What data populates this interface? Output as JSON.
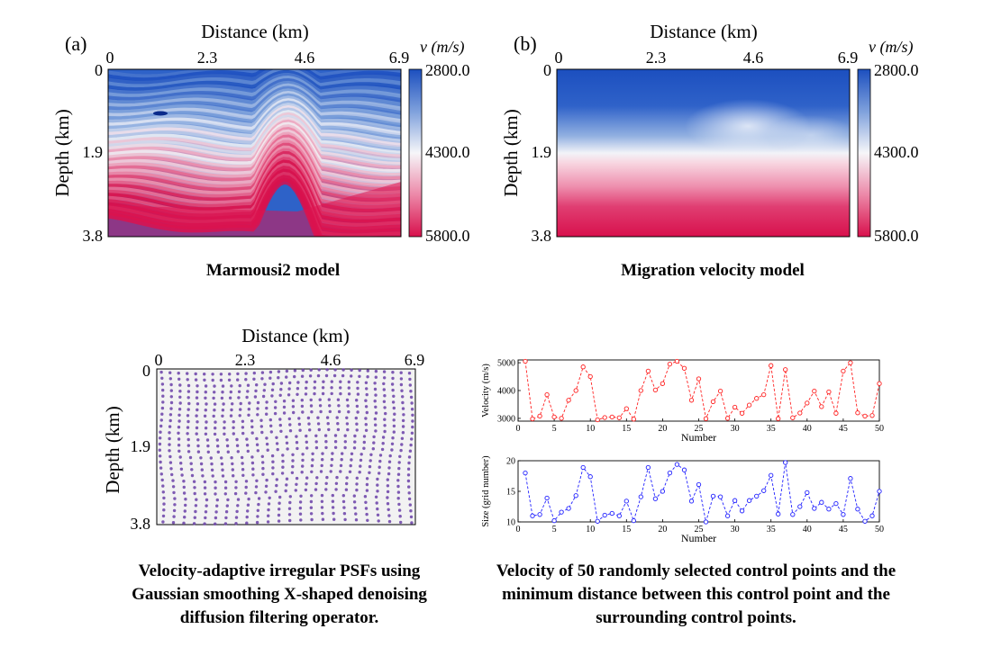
{
  "panels": {
    "a": {
      "tag": "(a)",
      "xlabel": "Distance (km)",
      "ylabel": "Depth (km)",
      "xticks": [
        "0",
        "2.3",
        "4.6",
        "6.9"
      ],
      "yticks": [
        "0",
        "1.9",
        "3.8"
      ],
      "colorbar_title": "v (m/s)",
      "colorbar_ticks": [
        "2800.0",
        "4300.0",
        "5800.0"
      ],
      "caption": "Marmousi2 model"
    },
    "b": {
      "tag": "(b)",
      "xlabel": "Distance (km)",
      "ylabel": "Depth (km)",
      "xticks": [
        "0",
        "2.3",
        "4.6",
        "6.9"
      ],
      "yticks": [
        "0",
        "1.9",
        "3.8"
      ],
      "colorbar_title": "v (m/s)",
      "colorbar_ticks": [
        "2800.0",
        "4300.0",
        "5800.0"
      ],
      "caption": "Migration velocity model"
    },
    "c": {
      "xlabel": "Distance (km)",
      "ylabel": "Depth (km)",
      "xticks": [
        "0",
        "2.3",
        "4.6",
        "6.9"
      ],
      "yticks": [
        "0",
        "1.9",
        "3.8"
      ],
      "caption_lines": [
        "Velocity-adaptive irregular PSFs using",
        "Gaussian smoothing X-shaped denoising",
        "diffusion filtering operator."
      ]
    },
    "d": {
      "caption_lines": [
        "Velocity of 50 randomly selected control points and the",
        "minimum distance between this control point and the",
        "surrounding control points."
      ]
    }
  },
  "colors": {
    "low_velocity": "#2050c0",
    "mid_velocity": "#f4f4f8",
    "high_velocity": "#dc1450",
    "velocity_series": "#ff2020",
    "size_series": "#2020ff",
    "psf_dot": "#6a3fa8"
  },
  "chart_data": [
    {
      "type": "heatmap",
      "title": "Marmousi2 model",
      "xlabel": "Distance (km)",
      "ylabel": "Depth (km)",
      "xlim": [
        0,
        6.9
      ],
      "ylim": [
        0,
        3.8
      ],
      "colorbar_label": "v (m/s)",
      "colorbar_range": [
        2800,
        5800
      ],
      "colormap": "blue-white-red"
    },
    {
      "type": "heatmap",
      "title": "Migration velocity model",
      "xlabel": "Distance (km)",
      "ylabel": "Depth (km)",
      "xlim": [
        0,
        6.9
      ],
      "ylim": [
        0,
        3.8
      ],
      "colorbar_label": "v (m/s)",
      "colorbar_range": [
        2800,
        5800
      ],
      "colormap": "blue-white-red"
    },
    {
      "type": "scatter",
      "title": "Velocity-adaptive irregular PSFs using Gaussian smoothing X-shaped denoising diffusion filtering operator.",
      "xlabel": "Distance (km)",
      "ylabel": "Depth (km)",
      "xlim": [
        0,
        6.9
      ],
      "ylim": [
        0,
        3.8
      ]
    },
    {
      "type": "line",
      "xlabel": "Number",
      "ylabel": "Velocity (m/s)",
      "xlim": [
        0,
        50
      ],
      "ylim": [
        2900,
        5100
      ],
      "xticks": [
        0,
        5,
        10,
        15,
        20,
        25,
        30,
        35,
        40,
        45,
        50
      ],
      "yticks": [
        3000,
        4000,
        5000
      ],
      "x": [
        1,
        2,
        3,
        4,
        5,
        6,
        7,
        8,
        9,
        10,
        11,
        12,
        13,
        14,
        15,
        16,
        17,
        18,
        19,
        20,
        21,
        22,
        23,
        24,
        25,
        26,
        27,
        28,
        29,
        30,
        31,
        32,
        33,
        34,
        35,
        36,
        37,
        38,
        39,
        40,
        41,
        42,
        43,
        44,
        45,
        46,
        47,
        48,
        49,
        50
      ],
      "values": [
        5050,
        2980,
        3080,
        3850,
        3050,
        3000,
        3650,
        4000,
        4850,
        4500,
        2950,
        3030,
        3050,
        3020,
        3350,
        2970,
        4000,
        4700,
        4020,
        4250,
        4950,
        5050,
        4800,
        3650,
        4420,
        2990,
        3600,
        3980,
        3000,
        3400,
        3180,
        3480,
        3720,
        3850,
        4900,
        2990,
        4750,
        3020,
        3190,
        3550,
        3980,
        3420,
        3950,
        3180,
        4700,
        5000,
        3200,
        3080,
        3100,
        4250
      ],
      "style": "dashed-circles"
    },
    {
      "type": "line",
      "xlabel": "Number",
      "ylabel": "Size (grid number)",
      "xlim": [
        0,
        50
      ],
      "ylim": [
        10,
        20
      ],
      "xticks": [
        0,
        5,
        10,
        15,
        20,
        25,
        30,
        35,
        40,
        45,
        50
      ],
      "yticks": [
        10,
        15,
        20
      ],
      "x": [
        1,
        2,
        3,
        4,
        5,
        6,
        7,
        8,
        9,
        10,
        11,
        12,
        13,
        14,
        15,
        16,
        17,
        18,
        19,
        20,
        21,
        22,
        23,
        24,
        25,
        26,
        27,
        28,
        29,
        30,
        31,
        32,
        33,
        34,
        35,
        36,
        37,
        38,
        39,
        40,
        41,
        42,
        43,
        44,
        45,
        46,
        47,
        48,
        49,
        50
      ],
      "values": [
        18.0,
        11.0,
        11.2,
        13.9,
        10.2,
        11.6,
        12.2,
        14.3,
        18.9,
        17.4,
        10.1,
        11.1,
        11.4,
        11.0,
        13.4,
        10.2,
        14.1,
        18.9,
        13.8,
        15.0,
        18.0,
        19.4,
        18.5,
        13.4,
        16.1,
        10.0,
        14.2,
        14.1,
        11.0,
        13.5,
        11.8,
        13.5,
        14.2,
        15.1,
        17.6,
        11.3,
        19.7,
        11.2,
        12.5,
        14.8,
        12.2,
        13.2,
        12.1,
        13.0,
        11.2,
        17.1,
        12.1,
        10.1,
        11.0,
        15.0
      ],
      "style": "dashed-circles"
    }
  ]
}
